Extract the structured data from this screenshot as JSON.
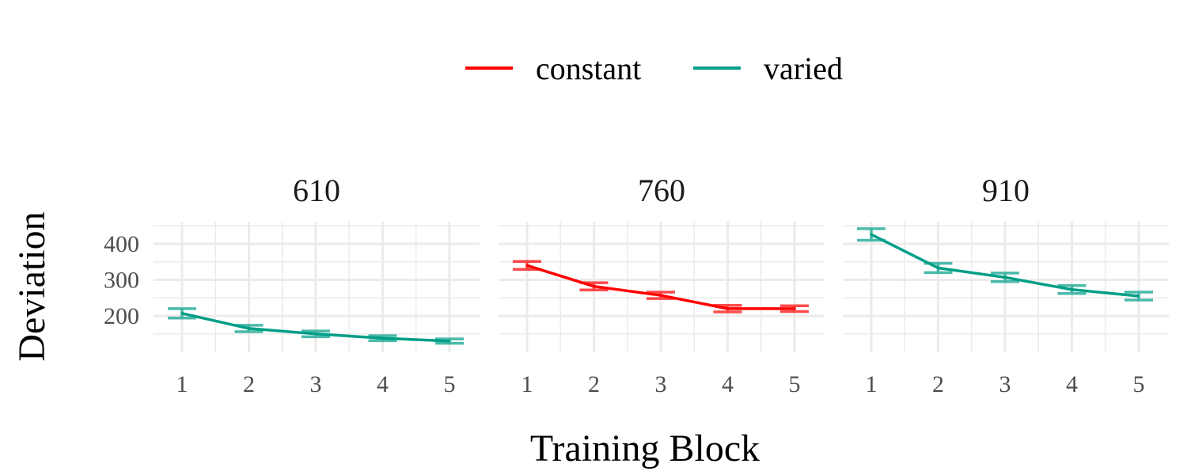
{
  "chart_data": {
    "type": "line",
    "xlabel": "Training Block",
    "ylabel": "Deviation",
    "x": [
      1,
      2,
      3,
      4,
      5
    ],
    "ylim": [
      100,
      460
    ],
    "yticks": [
      200,
      300,
      400
    ],
    "legend": {
      "placement": "top",
      "entries": [
        {
          "name": "constant",
          "color": "#ff0000"
        },
        {
          "name": "varied",
          "color": "#009e87"
        }
      ]
    },
    "panels": [
      {
        "title": "610",
        "series": "varied",
        "color": "#009e87",
        "values": [
          207,
          165,
          150,
          138,
          130
        ],
        "err": [
          13,
          9,
          8,
          7,
          6
        ]
      },
      {
        "title": "760",
        "series": "constant",
        "color": "#ff0000",
        "values": [
          340,
          282,
          257,
          220,
          220
        ],
        "err": [
          11,
          10,
          9,
          9,
          8
        ]
      },
      {
        "title": "910",
        "series": "varied",
        "color": "#009e87",
        "values": [
          426,
          333,
          307,
          273,
          255
        ],
        "err": [
          16,
          13,
          12,
          11,
          11
        ]
      }
    ],
    "grid": true
  }
}
